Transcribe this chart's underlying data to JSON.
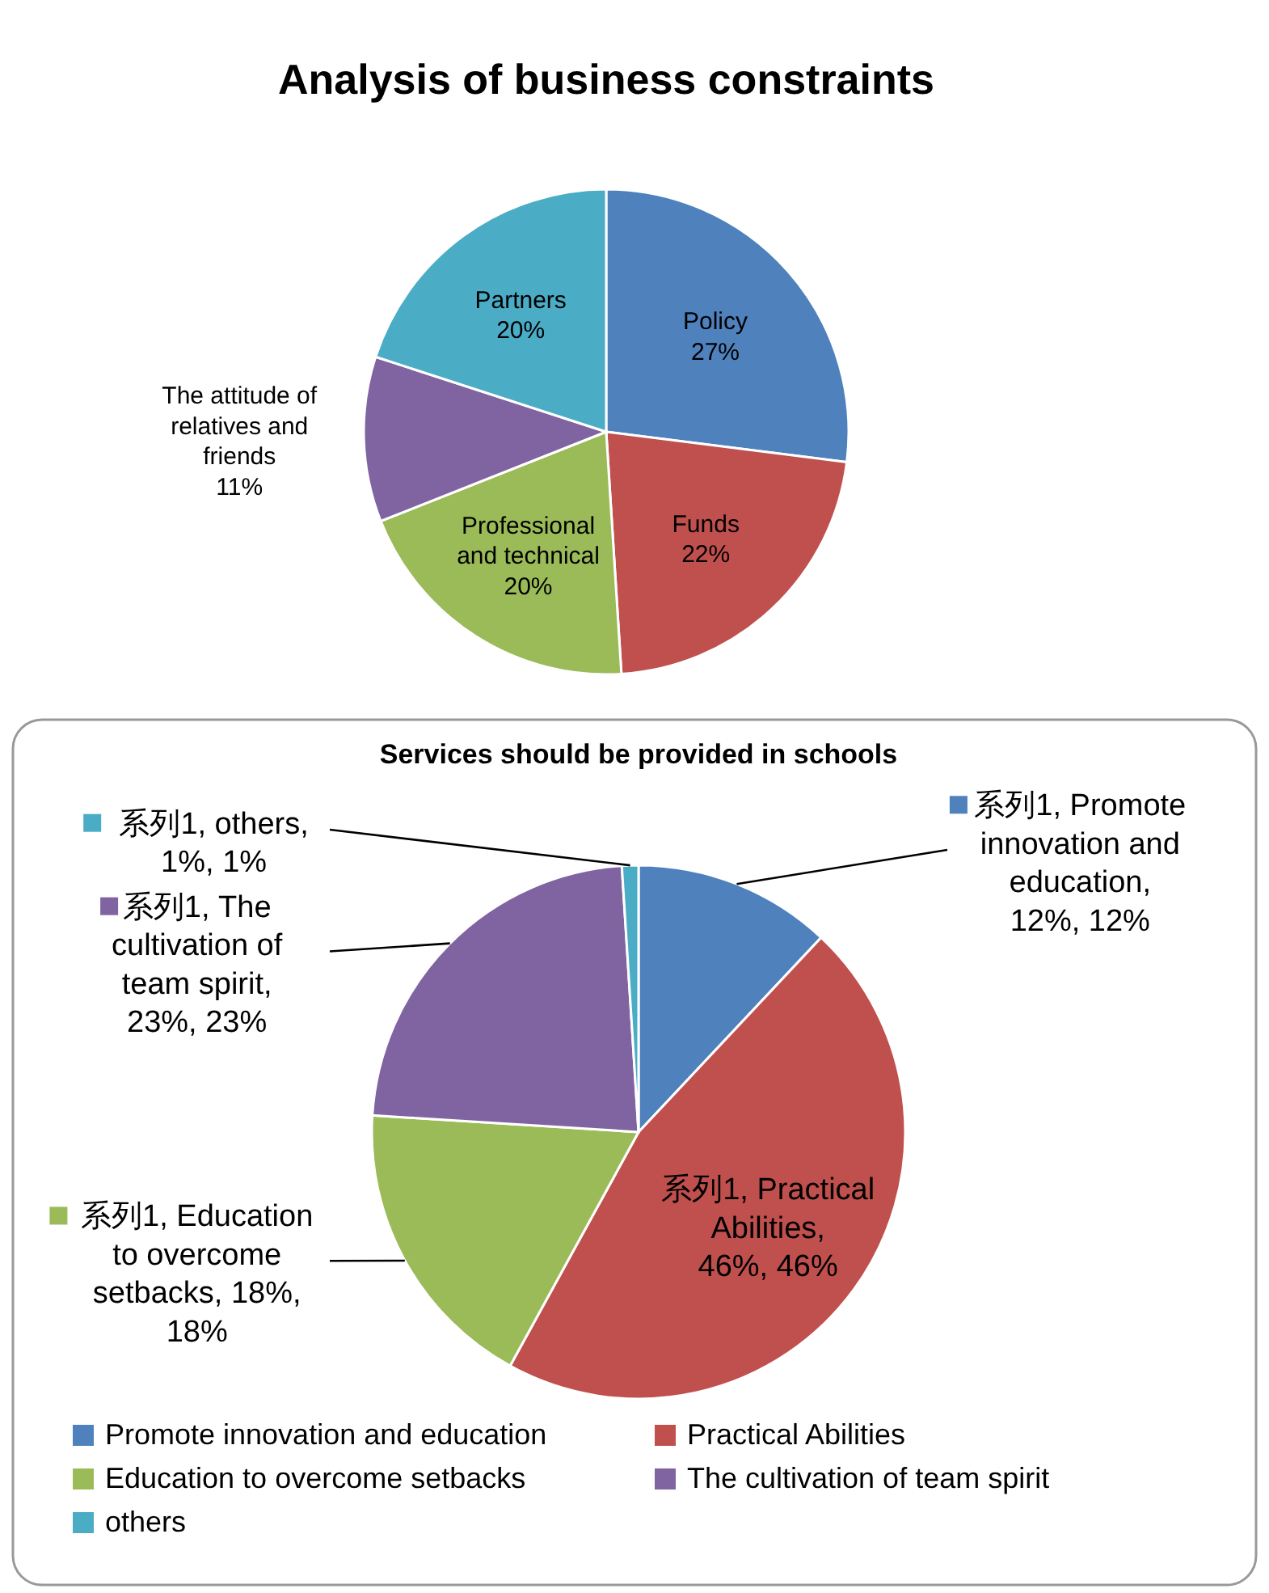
{
  "chart_data": [
    {
      "type": "pie",
      "title": "Analysis of business constraints",
      "categories": [
        "Policy",
        "Funds",
        "Professional and technical",
        "The attitude of relatives and friends",
        "Partners"
      ],
      "values": [
        27,
        22,
        20,
        11,
        20
      ],
      "value_labels": [
        "27%",
        "22%",
        "20%",
        "11%",
        "20%"
      ],
      "colors": [
        "#4f81bd",
        "#c0504d",
        "#9bbb59",
        "#8064a2",
        "#4bacc6"
      ]
    },
    {
      "type": "pie",
      "title": "Services should be provided in schools",
      "categories": [
        "Promote innovation and education",
        "Practical Abilities",
        "Education to overcome setbacks",
        "The cultivation of team spirit",
        "others"
      ],
      "values": [
        12,
        46,
        18,
        23,
        1
      ],
      "value_labels": [
        "系列1, Promote innovation and education, 12%, 12%",
        "系列1, Practical Abilities, 46%, 46%",
        "系列1, Education to overcome setbacks, 18%, 18%",
        "系列1, The cultivation of team spirit, 23%, 23%",
        "系列1, others, 1%, 1%"
      ],
      "colors": [
        "#4f81bd",
        "#c0504d",
        "#9bbb59",
        "#8064a2",
        "#4bacc6"
      ],
      "legend": "bottom"
    }
  ]
}
